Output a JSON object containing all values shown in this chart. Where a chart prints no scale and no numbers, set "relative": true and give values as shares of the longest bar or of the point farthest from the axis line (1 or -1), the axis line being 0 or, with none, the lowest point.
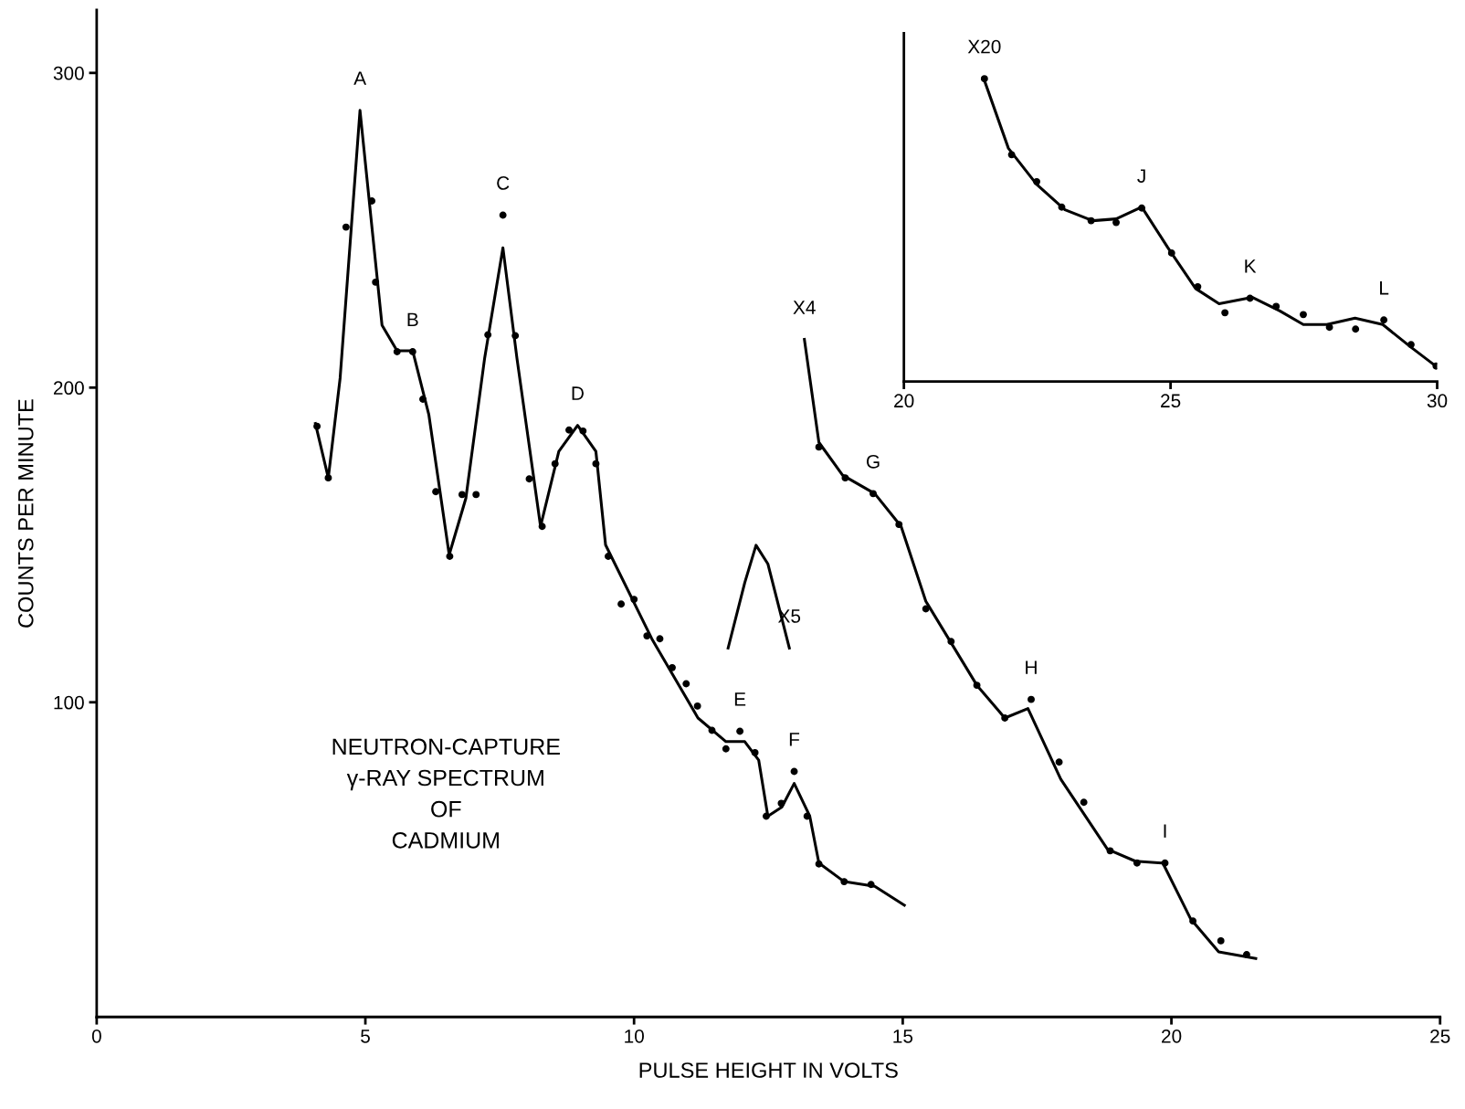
{
  "chart_data": [
    {
      "type": "line",
      "xlabel": "PULSE HEIGHT IN VOLTS",
      "ylabel": "COUNTS PER MINUTE",
      "xlim": [
        0,
        25
      ],
      "ylim": [
        0,
        320
      ],
      "xticks": [
        0,
        5,
        10,
        15,
        20,
        25
      ],
      "yticks": [
        100,
        200,
        300
      ],
      "grid": false,
      "line_style": "solid",
      "series": [
        {
          "color": "#000000",
          "marker": "none",
          "x": [
            4.07,
            4.31,
            4.53,
            4.9,
            5.14,
            5.31,
            5.59,
            5.88,
            6.18,
            6.56,
            6.87,
            7.22,
            7.56,
            7.82,
            8.26,
            8.6,
            8.95,
            9.29,
            9.47,
            10.33,
            11.19,
            11.71,
            12.06,
            12.32,
            12.49,
            12.75,
            12.98,
            13.27,
            13.44,
            13.91,
            14.48,
            15.03
          ],
          "values": [
            188.6,
            171.3,
            203,
            288.1,
            248,
            219.8,
            211.7,
            211.7,
            191.5,
            146.9,
            164.8,
            209.4,
            244.4,
            209.4,
            155.9,
            179.7,
            188,
            179.7,
            150,
            120.2,
            95,
            87.5,
            87.5,
            81.6,
            63.8,
            66.7,
            74.2,
            63.8,
            48.9,
            43,
            41.5,
            35.5
          ]
        },
        {
          "type": "scatter",
          "color": "#000000",
          "marker": "circle",
          "x": [
            4.1,
            4.31,
            4.64,
            5.12,
            5.19,
            5.59,
            5.88,
            6.07,
            6.31,
            6.57,
            6.8,
            7.06,
            7.28,
            7.56,
            7.79,
            8.05,
            8.29,
            8.53,
            8.79,
            9.05,
            9.29,
            9.52,
            9.76,
            10.0,
            10.24,
            10.48,
            10.71,
            10.97,
            11.18,
            11.45,
            11.71,
            11.97,
            12.25,
            12.46,
            12.74,
            12.98,
            13.22,
            13.44,
            13.91,
            14.41
          ],
          "values": [
            187.7,
            171.3,
            251,
            259.3,
            233.5,
            211.4,
            211.4,
            196.3,
            166.9,
            146.4,
            166,
            166,
            216.8,
            254.8,
            216.5,
            171,
            155.9,
            175.8,
            186.5,
            186.2,
            175.8,
            146.4,
            131.2,
            132.7,
            121.1,
            120.2,
            111,
            105.9,
            98.8,
            91.1,
            85.2,
            90.8,
            84,
            63.8,
            67.9,
            78,
            63.8,
            48.6,
            43,
            42.1
          ]
        },
        {
          "color": "#000000",
          "marker": "none",
          "x": [
            11.75,
            12.06,
            12.27,
            12.49,
            12.89
          ],
          "values": [
            117.2,
            138,
            149.9,
            144,
            117.2
          ]
        },
        {
          "color": "#000000",
          "marker": "none",
          "x": [
            13.17,
            13.44,
            13.88,
            14.48,
            14.97,
            15.43,
            16.38,
            16.9,
            17.33,
            17.94,
            18.81,
            19.33,
            19.84,
            20.36,
            20.88,
            21.57
          ],
          "values": [
            215.3,
            182.6,
            172.2,
            166.3,
            155.9,
            132.1,
            105.4,
            95,
            98,
            75.6,
            53.3,
            49.5,
            48.9,
            31.1,
            20.7,
            18.6
          ]
        },
        {
          "type": "scatter",
          "color": "#000000",
          "marker": "circle",
          "x": [
            13.44,
            13.93,
            14.45,
            14.93,
            15.43,
            15.9,
            16.38,
            16.9,
            17.39,
            17.91,
            18.37,
            18.86,
            19.36,
            19.88,
            20.4,
            20.92,
            21.4
          ],
          "values": [
            181.1,
            171.3,
            166.3,
            156.5,
            129.7,
            119.3,
            105.4,
            95,
            100.9,
            81,
            68.2,
            52.8,
            48.9,
            48.9,
            30.5,
            24.2,
            19.8
          ]
        }
      ],
      "annotations": [
        "NEUTRON-CAPTURE\nγ-RAY SPECTRUM\nOF\nCADMIUM",
        {
          "text": "A",
          "x": 4.9,
          "y": 288.1
        },
        {
          "text": "B",
          "x": 5.88,
          "y": 211.4
        },
        {
          "text": "C",
          "x": 7.56,
          "y": 254.8
        },
        {
          "text": "D",
          "x": 8.95,
          "y": 188
        },
        {
          "text": "E",
          "x": 11.97,
          "y": 90.8
        },
        {
          "text": "F",
          "x": 12.98,
          "y": 78
        },
        {
          "text": "G",
          "x": 14.45,
          "y": 166.3
        },
        {
          "text": "H",
          "x": 17.39,
          "y": 100.9
        },
        {
          "text": "I",
          "x": 19.88,
          "y": 48.9
        },
        {
          "text": "X4",
          "x": 13.17,
          "y": 215.3
        },
        {
          "text": "X5",
          "x": 12.89,
          "y": 117.2
        }
      ]
    },
    {
      "type": "line",
      "relative": true,
      "xlim": [
        20,
        30
      ],
      "xticks": [
        20,
        25,
        30
      ],
      "tick_labels": "x",
      "grid": false,
      "line_style": "solid",
      "series": [
        {
          "color": "#000000",
          "marker": "none",
          "x": [
            21.51,
            21.96,
            22.49,
            23.02,
            23.54,
            23.98,
            24.46,
            24.95,
            25.47,
            25.91,
            26.53,
            27.05,
            27.49,
            27.93,
            28.46,
            28.98,
            29.51,
            29.95
          ],
          "values": [
            0.994,
            0.77,
            0.651,
            0.567,
            0.531,
            0.537,
            0.576,
            0.442,
            0.307,
            0.257,
            0.278,
            0.233,
            0.188,
            0.188,
            0.209,
            0.188,
            0.113,
            0.054
          ]
        },
        {
          "type": "scatter",
          "color": "#000000",
          "marker": "circle",
          "x": [
            21.51,
            22.02,
            22.49,
            22.96,
            23.51,
            23.98,
            24.46,
            25.02,
            25.51,
            26.02,
            26.49,
            26.98,
            27.49,
            27.98,
            28.47,
            29.0,
            29.51,
            29.98
          ],
          "values": [
            1.0,
            0.749,
            0.66,
            0.576,
            0.531,
            0.525,
            0.573,
            0.424,
            0.313,
            0.227,
            0.275,
            0.248,
            0.221,
            0.179,
            0.173,
            0.203,
            0.122,
            0.051
          ]
        }
      ],
      "annotations": [
        {
          "text": "X20",
          "x": 21.51,
          "y": 1.0
        },
        {
          "text": "J",
          "x": 24.46,
          "y": 0.573
        },
        {
          "text": "K",
          "x": 26.49,
          "y": 0.275
        },
        {
          "text": "L",
          "x": 29.0,
          "y": 0.203
        }
      ]
    }
  ]
}
